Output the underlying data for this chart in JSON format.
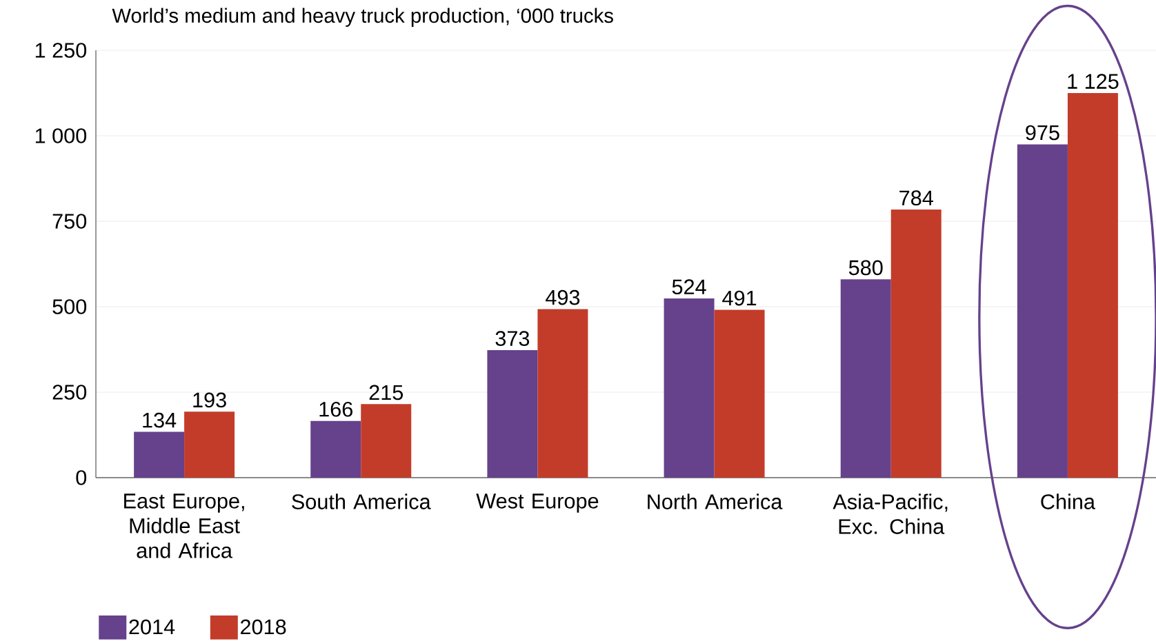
{
  "chart_data": {
    "type": "bar",
    "title": "World’s medium and heavy truck production, ‘000 trucks",
    "categories": [
      "East Europe, Middle East and Africa",
      "South America",
      "West Europe",
      "North America",
      "Asia-Pacific, Exc. China",
      "China"
    ],
    "series": [
      {
        "name": "2014",
        "color": "#66418c",
        "values": [
          134,
          166,
          373,
          524,
          580,
          975
        ],
        "value_labels": [
          "134",
          "166",
          "373",
          "524",
          "580",
          "975"
        ]
      },
      {
        "name": "2018",
        "color": "#c33c2a",
        "values": [
          193,
          215,
          493,
          491,
          784,
          1125
        ],
        "value_labels": [
          "193",
          "215",
          "493",
          "491",
          "784",
          "1 125"
        ]
      }
    ],
    "ylim": [
      0,
      1250
    ],
    "yticks": [
      0,
      250,
      500,
      750,
      {
        "value": 1000,
        "label": "1 000"
      },
      {
        "value": 1250,
        "label": "1 250"
      }
    ],
    "grid": "y",
    "legend": "bottom left"
  }
}
